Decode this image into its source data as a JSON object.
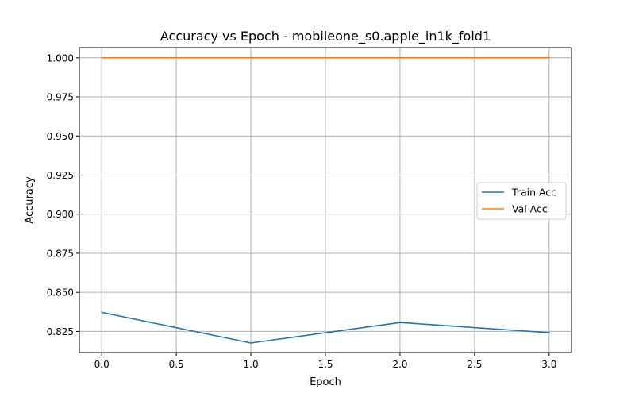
{
  "chart_data": {
    "type": "line",
    "title": "Accuracy vs Epoch - mobileone_s0.apple_in1k_fold1",
    "xlabel": "Epoch",
    "ylabel": "Accuracy",
    "xlim": [
      -0.15,
      3.15
    ],
    "ylim": [
      0.8115,
      1.0065
    ],
    "xticks": [
      0.0,
      0.5,
      1.0,
      1.5,
      2.0,
      2.5,
      3.0
    ],
    "xtick_labels": [
      "0.0",
      "0.5",
      "1.0",
      "1.5",
      "2.0",
      "2.5",
      "3.0"
    ],
    "yticks": [
      0.825,
      0.85,
      0.875,
      0.9,
      0.925,
      0.95,
      0.975,
      1.0
    ],
    "ytick_labels": [
      "0.825",
      "0.850",
      "0.875",
      "0.900",
      "0.925",
      "0.950",
      "0.975",
      "1.000"
    ],
    "grid": true,
    "legend_position": "center-right",
    "x": [
      0,
      1,
      2,
      3
    ],
    "series": [
      {
        "name": "Train Acc",
        "color": "#1f77b4",
        "values": [
          0.8372,
          0.8176,
          0.8307,
          0.8242
        ]
      },
      {
        "name": "Val Acc",
        "color": "#ff7f0e",
        "values": [
          1.0,
          1.0,
          1.0,
          1.0
        ]
      }
    ]
  }
}
